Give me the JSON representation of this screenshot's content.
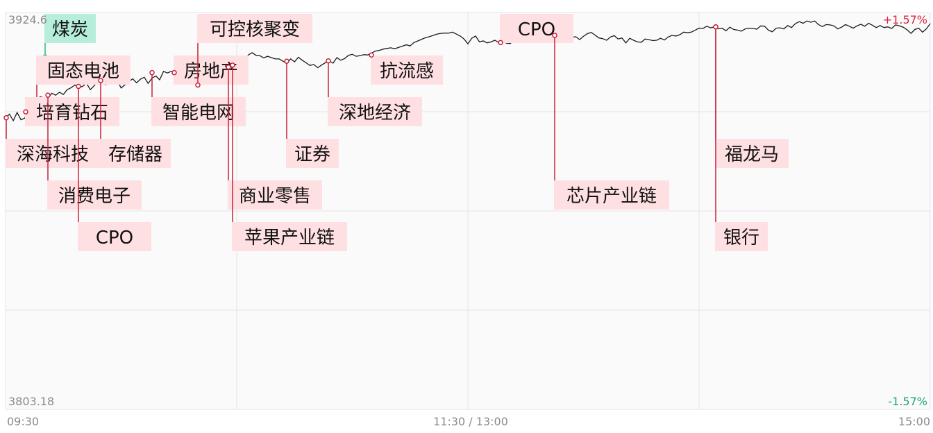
{
  "chart_data": {
    "type": "line",
    "title": "",
    "y_top_label": "3924.6",
    "y_bottom_label": "3803.18",
    "pct_top": "+1.57%",
    "pct_bottom": "-1.57%",
    "time_labels": [
      "09:30",
      "11:30 / 13:00",
      "15:00"
    ],
    "ylim": [
      3803.18,
      3924.6
    ],
    "grid": true,
    "x_range": [
      0,
      240
    ],
    "series": [
      {
        "values": [
          [
            0,
            3892.4
          ],
          [
            1,
            3893.5
          ],
          [
            2,
            3891.5
          ],
          [
            3,
            3894.0
          ],
          [
            4,
            3891.8
          ],
          [
            5,
            3892.3
          ],
          [
            6,
            3895.5
          ],
          [
            7,
            3894.5
          ],
          [
            8,
            3897.7
          ],
          [
            9,
            3898.8
          ],
          [
            10,
            3898.5
          ],
          [
            11,
            3898.3
          ],
          [
            12,
            3899.9
          ],
          [
            13,
            3899.3
          ],
          [
            14,
            3900.2
          ],
          [
            15,
            3899.5
          ],
          [
            16,
            3901.0
          ],
          [
            17,
            3901.6
          ],
          [
            18,
            3902.4
          ],
          [
            19,
            3901.7
          ],
          [
            20,
            3902.0
          ],
          [
            21,
            3903.0
          ],
          [
            22,
            3901.0
          ],
          [
            23,
            3902.2
          ],
          [
            24,
            3903.6
          ],
          [
            25,
            3903.2
          ],
          [
            26,
            3902.5
          ],
          [
            27,
            3903.9
          ],
          [
            28,
            3904.6
          ],
          [
            29,
            3903.8
          ],
          [
            30,
            3901.5
          ],
          [
            31,
            3902.5
          ],
          [
            32,
            3903.5
          ],
          [
            33,
            3904.3
          ],
          [
            34,
            3903.1
          ],
          [
            35,
            3904.2
          ],
          [
            36,
            3904.8
          ],
          [
            37,
            3902.9
          ],
          [
            38,
            3904.5
          ],
          [
            39,
            3905.2
          ],
          [
            40,
            3904.0
          ],
          [
            41,
            3906.6
          ],
          [
            42,
            3906.1
          ],
          [
            43,
            3906.6
          ],
          [
            44,
            3906.2
          ],
          [
            45,
            3906.9
          ],
          [
            46,
            3906.0
          ],
          [
            47,
            3906.5
          ],
          [
            48,
            3905.2
          ],
          [
            49,
            3903.3
          ],
          [
            50,
            3902.4
          ],
          [
            51,
            3904.3
          ],
          [
            52,
            3903.7
          ],
          [
            53,
            3905.0
          ],
          [
            54,
            3904.4
          ],
          [
            55,
            3905.7
          ],
          [
            56,
            3906.1
          ],
          [
            57,
            3907.2
          ],
          [
            58,
            3907.9
          ],
          [
            59,
            3908.5
          ],
          [
            60,
            3909.3
          ],
          [
            61,
            3910.7
          ],
          [
            62,
            3910.1
          ],
          [
            63,
            3911.6
          ],
          [
            64,
            3912.3
          ],
          [
            65,
            3911.5
          ],
          [
            66,
            3911.4
          ],
          [
            67,
            3910.7
          ],
          [
            68,
            3911.2
          ],
          [
            69,
            3910.8
          ],
          [
            70,
            3910.4
          ],
          [
            71,
            3910.4
          ],
          [
            72,
            3909.7
          ],
          [
            73,
            3909.1
          ],
          [
            74,
            3910.4
          ],
          [
            75,
            3909.5
          ],
          [
            76,
            3910.9
          ],
          [
            77,
            3910.0
          ],
          [
            78,
            3909.2
          ],
          [
            79,
            3908.4
          ],
          [
            80,
            3908.7
          ],
          [
            81,
            3907.7
          ],
          [
            82,
            3908.5
          ],
          [
            83,
            3909.2
          ],
          [
            84,
            3909.8
          ],
          [
            85,
            3909.1
          ],
          [
            86,
            3910.8
          ],
          [
            87,
            3910.0
          ],
          [
            88,
            3910.5
          ],
          [
            89,
            3911.5
          ],
          [
            90,
            3911.8
          ],
          [
            91,
            3911.2
          ],
          [
            92,
            3911.4
          ],
          [
            93,
            3911.7
          ],
          [
            94,
            3911.6
          ],
          [
            95,
            3912.2
          ],
          [
            96,
            3912.8
          ],
          [
            97,
            3913.0
          ],
          [
            98,
            3913.4
          ],
          [
            99,
            3913.6
          ],
          [
            100,
            3913.8
          ],
          [
            101,
            3913.5
          ],
          [
            102,
            3913.9
          ],
          [
            103,
            3914.3
          ],
          [
            104,
            3914.7
          ],
          [
            105,
            3914.4
          ],
          [
            106,
            3915.4
          ],
          [
            107,
            3915.9
          ],
          [
            108,
            3916.4
          ],
          [
            109,
            3916.9
          ],
          [
            110,
            3917.2
          ],
          [
            111,
            3917.6
          ],
          [
            112,
            3918.0
          ],
          [
            113,
            3918.2
          ],
          [
            114,
            3918.3
          ],
          [
            115,
            3918.3
          ],
          [
            116,
            3918.6
          ],
          [
            117,
            3918.0
          ],
          [
            118,
            3917.4
          ],
          [
            119,
            3916.5
          ],
          [
            120,
            3915.0
          ],
          [
            121,
            3916.7
          ],
          [
            122,
            3917.4
          ],
          [
            123,
            3915.6
          ],
          [
            124,
            3915.9
          ],
          [
            125,
            3915.3
          ],
          [
            126,
            3915.6
          ],
          [
            127,
            3916.1
          ],
          [
            128,
            3915.4
          ],
          [
            129,
            3916.0
          ],
          [
            130,
            3915.2
          ],
          [
            131,
            3915.1
          ],
          [
            132,
            3916.2
          ],
          [
            133,
            3916.8
          ],
          [
            134,
            3916.9
          ],
          [
            135,
            3916.0
          ],
          [
            136,
            3917.7
          ],
          [
            137,
            3917.2
          ],
          [
            138,
            3917.9
          ],
          [
            139,
            3917.8
          ],
          [
            140,
            3917.1
          ],
          [
            141,
            3917.3
          ],
          [
            142,
            3917.6
          ],
          [
            143,
            3916.8
          ],
          [
            144,
            3917.3
          ],
          [
            145,
            3917.7
          ],
          [
            146,
            3917.6
          ],
          [
            147,
            3917.0
          ],
          [
            148,
            3917.2
          ],
          [
            149,
            3916.3
          ],
          [
            150,
            3917.3
          ],
          [
            151,
            3918.1
          ],
          [
            152,
            3918.5
          ],
          [
            153,
            3917.7
          ],
          [
            154,
            3916.8
          ],
          [
            155,
            3916.6
          ],
          [
            156,
            3916.1
          ],
          [
            157,
            3917.1
          ],
          [
            158,
            3917.5
          ],
          [
            159,
            3916.5
          ],
          [
            160,
            3916.8
          ],
          [
            161,
            3915.3
          ],
          [
            162,
            3916.7
          ],
          [
            163,
            3916.1
          ],
          [
            164,
            3915.6
          ],
          [
            165,
            3915.5
          ],
          [
            166,
            3916.5
          ],
          [
            167,
            3916.3
          ],
          [
            168,
            3916.0
          ],
          [
            169,
            3916.1
          ],
          [
            170,
            3916.7
          ],
          [
            171,
            3916.2
          ],
          [
            172,
            3917.1
          ],
          [
            173,
            3917.6
          ],
          [
            174,
            3917.4
          ],
          [
            175,
            3917.8
          ],
          [
            176,
            3918.6
          ],
          [
            177,
            3918.4
          ],
          [
            178,
            3918.6
          ],
          [
            179,
            3919.2
          ],
          [
            180,
            3919.8
          ],
          [
            181,
            3919.7
          ],
          [
            182,
            3920.4
          ],
          [
            183,
            3919.9
          ],
          [
            184,
            3920.2
          ],
          [
            185,
            3919.6
          ],
          [
            186,
            3919.8
          ],
          [
            187,
            3919.0
          ],
          [
            188,
            3920.1
          ],
          [
            189,
            3919.4
          ],
          [
            190,
            3919.2
          ],
          [
            191,
            3918.9
          ],
          [
            192,
            3919.6
          ],
          [
            193,
            3919.8
          ],
          [
            194,
            3919.7
          ],
          [
            195,
            3919.5
          ],
          [
            196,
            3920.5
          ],
          [
            197,
            3920.4
          ],
          [
            198,
            3919.2
          ],
          [
            199,
            3918.7
          ],
          [
            200,
            3919.8
          ],
          [
            201,
            3919.9
          ],
          [
            202,
            3919.6
          ],
          [
            203,
            3920.6
          ],
          [
            204,
            3920.0
          ],
          [
            205,
            3921.2
          ],
          [
            206,
            3921.8
          ],
          [
            207,
            3921.3
          ],
          [
            208,
            3922.0
          ],
          [
            209,
            3921.6
          ],
          [
            210,
            3922.0
          ],
          [
            211,
            3920.9
          ],
          [
            212,
            3920.3
          ],
          [
            213,
            3920.9
          ],
          [
            214,
            3920.8
          ],
          [
            215,
            3920.5
          ],
          [
            216,
            3919.6
          ],
          [
            217,
            3920.1
          ],
          [
            218,
            3920.9
          ],
          [
            219,
            3920.4
          ],
          [
            220,
            3919.8
          ],
          [
            221,
            3920.5
          ],
          [
            222,
            3921.0
          ],
          [
            223,
            3920.4
          ],
          [
            224,
            3921.3
          ],
          [
            225,
            3920.7
          ],
          [
            226,
            3920.0
          ],
          [
            227,
            3920.6
          ],
          [
            228,
            3920.0
          ],
          [
            229,
            3920.2
          ],
          [
            230,
            3919.7
          ],
          [
            231,
            3920.8
          ],
          [
            232,
            3920.5
          ],
          [
            233,
            3920.1
          ],
          [
            234,
            3919.3
          ],
          [
            235,
            3918.2
          ],
          [
            236,
            3919.4
          ],
          [
            237,
            3919.8
          ],
          [
            238,
            3918.6
          ],
          [
            239,
            3919.6
          ],
          [
            240,
            3921.2
          ]
        ]
      }
    ],
    "events": [
      {
        "label": "煤炭",
        "t": 11,
        "v": 3911.0,
        "highlight": true,
        "color": "#b7eedb",
        "line": "#2bb88a"
      },
      {
        "label": "固态电池",
        "t": 8,
        "v": 3896.0,
        "color": "#ffe0e2",
        "line": "#c9213a"
      },
      {
        "label": "培育钻石",
        "t": 5,
        "v": 3894.2,
        "color": "#ffe0e2",
        "line": "#c9213a"
      },
      {
        "label": "深海科技",
        "t": 0.3,
        "v": 3892.4,
        "color": "#ffe0e2",
        "line": "#c9213a"
      },
      {
        "label": "存储器",
        "t": 29,
        "v": 3903.8,
        "color": "#ffe0e2",
        "line": "#c9213a"
      },
      {
        "label": "消费电子",
        "t": 13,
        "v": 3899.3,
        "color": "#ffe0e2",
        "line": "#c9213a"
      },
      {
        "label": "CPO",
        "t": 20,
        "v": 3902.0,
        "color": "#ffe0e2",
        "line": "#c9213a"
      },
      {
        "label": "智能电网",
        "t": 44,
        "v": 3906.2,
        "color": "#ffe0e2",
        "line": "#c9213a"
      },
      {
        "label": "房地产",
        "t": 44,
        "v": 3906.2,
        "color": "#ffe0e2",
        "line": "#c9213a"
      },
      {
        "label": "可控核聚变",
        "t": 50,
        "v": 3902.4,
        "color": "#ffe0e2",
        "line": "#c9213a"
      },
      {
        "label": "商业零售",
        "t": 58,
        "v": 3907.9,
        "color": "#ffe0e2",
        "line": "#c9213a"
      },
      {
        "label": "苹果产业链",
        "t": 59,
        "v": 3908.5,
        "color": "#ffe0e2",
        "line": "#c9213a"
      },
      {
        "label": "证券",
        "t": 72,
        "v": 3909.7,
        "color": "#ffe0e2",
        "line": "#c9213a"
      },
      {
        "label": "深地经济",
        "t": 84,
        "v": 3909.8,
        "color": "#ffe0e2",
        "line": "#c9213a"
      },
      {
        "label": "抗流感",
        "t": 94,
        "v": 3911.6,
        "color": "#ffe0e2",
        "line": "#c9213a"
      },
      {
        "label": "CPO",
        "t": 128,
        "v": 3915.4,
        "color": "#ffe0e2",
        "line": "#c9213a"
      },
      {
        "label": "芯片产业链",
        "t": 142,
        "v": 3917.6,
        "color": "#ffe0e2",
        "line": "#c9213a"
      },
      {
        "label": "福龙马",
        "t": 184,
        "v": 3920.2,
        "color": "#ffe0e2",
        "line": "#c9213a"
      },
      {
        "label": "银行",
        "t": 184,
        "v": 3920.2,
        "color": "#ffe0e2",
        "line": "#c9213a"
      }
    ]
  }
}
